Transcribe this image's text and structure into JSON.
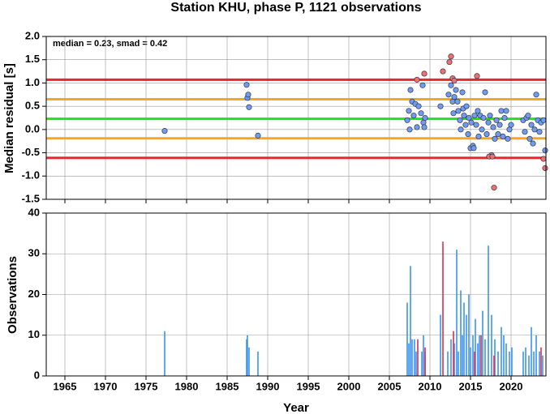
{
  "chart_data": [
    {
      "type": "scatter",
      "title": "Station KHU, phase P, 1121 observations",
      "annotation": "median = 0.23, smad = 0.42",
      "ylabel": "Median residual [s]",
      "xlim": [
        1962.7,
        2024.3
      ],
      "xticks": [
        1965,
        1970,
        1975,
        1980,
        1985,
        1990,
        1995,
        2000,
        2005,
        2010,
        2015,
        2020
      ],
      "ylim": [
        -1.5,
        2.0
      ],
      "yticks": [
        {
          "value": 2.0,
          "label": "2.0"
        },
        1.5,
        {
          "value": 1.0,
          "label": "1.0"
        },
        0.5,
        {
          "value": 0.0,
          "label": "0.0"
        },
        -0.5,
        {
          "value": -1.0,
          "label": "-1.0"
        },
        -1.5
      ],
      "grid": true,
      "hlines": [
        {
          "value": 1.07,
          "color": "#e8262b"
        },
        {
          "value": 0.65,
          "color": "#f5a623"
        },
        {
          "value": 0.23,
          "color": "#22e022"
        },
        {
          "value": -0.19,
          "color": "#f5a623"
        },
        {
          "value": -0.61,
          "color": "#e8262b"
        }
      ],
      "series": [
        {
          "color": "#6f9cf0",
          "x": [
            1977.3,
            1987.4,
            1987.5,
            1987.6,
            1987.7,
            1988.8,
            2007.2,
            2007.4,
            2007.6,
            2007.8,
            2008.0,
            2008.2,
            2008.4,
            2007.5,
            2008.6,
            2008.9,
            2009.1,
            2009.2,
            2009.3,
            2009.4,
            2011.3,
            2012.3,
            2012.6,
            2012.8,
            2012.9,
            2013.0,
            2013.2,
            2013.4,
            2013.5,
            2013.7,
            2013.8,
            2014.0,
            2014.1,
            2014.2,
            2014.4,
            2014.5,
            2014.7,
            2014.8,
            2015.0,
            2015.1,
            2015.3,
            2015.4,
            2015.5,
            2015.7,
            2015.9,
            2016.0,
            2016.2,
            2016.4,
            2016.6,
            2016.8,
            2017.0,
            2017.2,
            2017.4,
            2017.6,
            2017.8,
            2018.0,
            2018.2,
            2018.4,
            2018.6,
            2018.8,
            2019.0,
            2019.2,
            2019.4,
            2019.6,
            2019.8,
            2020.0,
            2021.5,
            2021.7,
            2021.9,
            2022.1,
            2022.3,
            2022.5,
            2022.7,
            2022.9,
            2023.1,
            2023.3,
            2023.5,
            2023.7,
            2024.0,
            2024.2
          ],
          "values": [
            -0.03,
            0.96,
            0.68,
            0.75,
            0.48,
            -0.13,
            0.2,
            0.4,
            0.85,
            0.6,
            0.3,
            0.55,
            0.05,
            0.0,
            0.5,
            0.35,
            0.95,
            0.15,
            0.05,
            0.25,
            0.5,
            0.75,
            0.95,
            0.6,
            0.35,
            0.7,
            0.85,
            0.6,
            0.4,
            0.2,
            0.0,
            0.8,
            0.45,
            0.3,
            0.1,
            0.5,
            -0.1,
            0.25,
            -0.4,
            0.15,
            -0.35,
            -0.4,
            0.3,
            0.1,
            0.4,
            -0.15,
            0.3,
            0.0,
            0.25,
            0.8,
            -0.1,
            0.15,
            0.3,
            -0.55,
            0.05,
            -0.2,
            0.2,
            -0.1,
            0.1,
            0.4,
            -0.15,
            0.25,
            0.4,
            -0.2,
            0.0,
            0.1,
            0.2,
            -0.05,
            0.25,
            0.3,
            -0.2,
            0.1,
            -0.3,
            0.0,
            0.75,
            0.2,
            -0.05,
            0.15,
            0.2,
            -0.45
          ]
        },
        {
          "color": "#f07070",
          "x": [
            2008.4,
            2009.3,
            2011.6,
            2012.4,
            2012.6,
            2012.8,
            2013.0,
            2015.8,
            2017.3,
            2017.7,
            2017.9,
            2024.0,
            2024.2
          ],
          "values": [
            1.07,
            1.2,
            1.25,
            1.45,
            1.57,
            1.1,
            1.05,
            1.15,
            -0.58,
            -0.58,
            -1.25,
            -0.63,
            -0.83
          ]
        }
      ]
    },
    {
      "type": "bar",
      "ylabel": "Observations",
      "xlabel": "Year",
      "xlim": [
        1962.7,
        2024.3
      ],
      "xticks": [
        1965,
        1970,
        1975,
        1980,
        1985,
        1990,
        1995,
        2000,
        2005,
        2010,
        2015,
        2020
      ],
      "ylim": [
        0,
        40
      ],
      "yticks": [
        0,
        10,
        20,
        30,
        40
      ],
      "grid": true,
      "series": [
        {
          "color": "#3a96f0",
          "x": [
            1977.3,
            1987.4,
            1987.5,
            1987.7,
            1988.8,
            2007.2,
            2007.4,
            2007.6,
            2007.8,
            2008.1,
            2008.3,
            2009.0,
            2009.2,
            2009.4,
            2011.3,
            2012.2,
            2012.6,
            2013.0,
            2013.3,
            2013.5,
            2013.8,
            2014.0,
            2014.2,
            2014.5,
            2014.8,
            2015.0,
            2015.3,
            2015.6,
            2015.9,
            2016.1,
            2016.5,
            2016.8,
            2017.2,
            2017.6,
            2018.0,
            2018.4,
            2018.8,
            2019.1,
            2019.4,
            2019.8,
            2020.1,
            2021.5,
            2021.8,
            2022.2,
            2022.5,
            2022.8,
            2023.1,
            2023.5,
            2023.9
          ],
          "values": [
            11,
            9,
            10,
            7,
            6,
            18,
            8,
            27,
            9,
            9,
            6,
            6,
            10,
            6,
            15,
            6,
            9,
            8,
            31,
            6,
            21,
            10,
            18,
            15,
            20,
            7,
            10,
            14,
            8,
            10,
            16,
            9,
            32,
            15,
            9,
            6,
            12,
            10,
            8,
            6,
            7,
            6,
            7,
            5,
            12,
            6,
            10,
            6,
            5
          ]
        },
        {
          "color": "#d8304a",
          "x": [
            2008.5,
            2009.4,
            2011.6,
            2012.9,
            2015.5,
            2016.3,
            2017.9,
            2023.7
          ],
          "values": [
            9,
            7,
            33,
            11,
            6,
            10,
            5,
            7
          ]
        }
      ]
    }
  ]
}
